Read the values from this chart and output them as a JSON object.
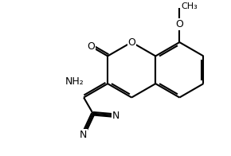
{
  "bg": "#ffffff",
  "lc": "#000000",
  "lw": 1.5,
  "fs": 9,
  "xlim": [
    0,
    8
  ],
  "ylim": [
    0,
    6
  ],
  "C8a": [
    5.55,
    3.85
  ],
  "C4a": [
    5.55,
    2.78
  ],
  "bl": 1.07
}
